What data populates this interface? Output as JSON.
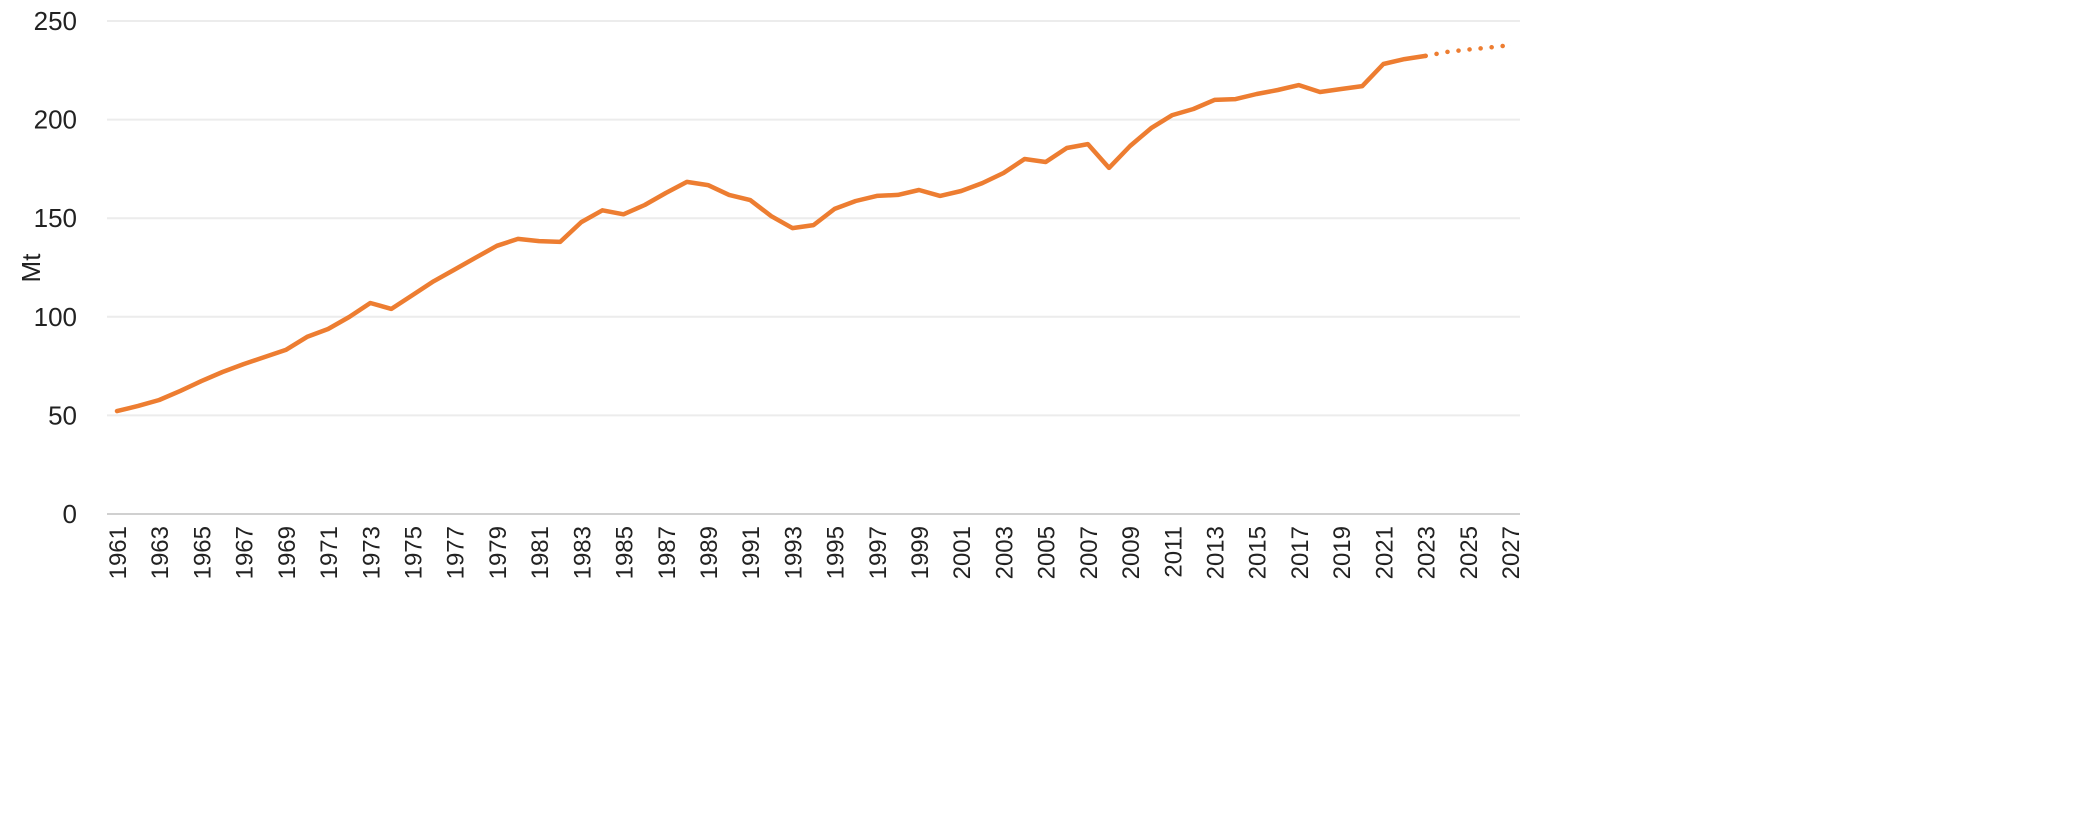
{
  "chart_data": {
    "type": "line",
    "title": "",
    "xlabel": "",
    "ylabel": "Mt",
    "ylim": [
      0,
      250
    ],
    "yticks": [
      0,
      50,
      100,
      150,
      200,
      250
    ],
    "xlim": [
      1961,
      2027
    ],
    "xtick_step": 2,
    "grid": true,
    "legend": "none",
    "color": "#ED7D31",
    "series": [
      {
        "style": "solid",
        "x": [
          1961,
          1962,
          1963,
          1964,
          1965,
          1966,
          1967,
          1968,
          1969,
          1970,
          1971,
          1972,
          1973,
          1974,
          1975,
          1976,
          1977,
          1978,
          1979,
          1980,
          1981,
          1982,
          1983,
          1984,
          1985,
          1986,
          1987,
          1988,
          1989,
          1990,
          1991,
          1992,
          1993,
          1994,
          1995,
          1996,
          1997,
          1998,
          1999,
          2000,
          2001,
          2002,
          2003,
          2004,
          2005,
          2006,
          2007,
          2008,
          2009,
          2010,
          2011,
          2012,
          2013,
          2014,
          2015,
          2016,
          2017,
          2018,
          2019,
          2020,
          2021,
          2022,
          2023
        ],
        "values": [
          52.2,
          54.8,
          57.8,
          62.4,
          67.4,
          72,
          76,
          79.6,
          83.2,
          89.8,
          93.8,
          99.9,
          107,
          104,
          111,
          118,
          124,
          130,
          136,
          139.5,
          138.4,
          138,
          148,
          154,
          152,
          156.7,
          162.8,
          168.4,
          166.8,
          161.8,
          159.2,
          151,
          145,
          146.5,
          154.7,
          158.7,
          161.3,
          161.8,
          164.3,
          161.3,
          163.8,
          167.8,
          172.9,
          180,
          178.5,
          185.6,
          187.6,
          175.5,
          186.6,
          195.7,
          202.3,
          205.4,
          210,
          210.4,
          213,
          215,
          217.5,
          214,
          215.5,
          217,
          228.2,
          230.7,
          232.3
        ]
      },
      {
        "style": "dotted",
        "x": [
          2023,
          2024,
          2025,
          2026,
          2027
        ],
        "values": [
          232.3,
          234.3,
          235.5,
          236.5,
          237.8
        ]
      }
    ]
  }
}
